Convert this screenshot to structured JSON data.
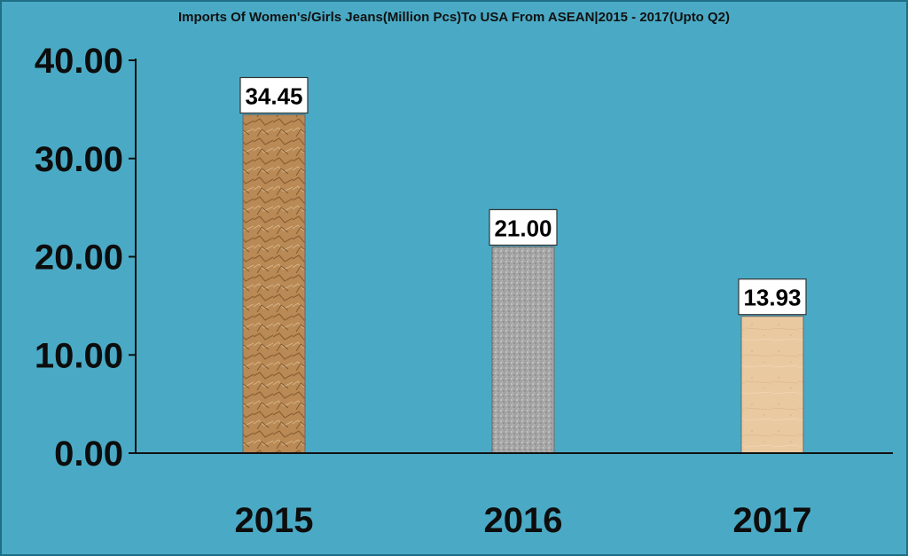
{
  "chart_data": {
    "type": "bar",
    "title": "Imports Of Women's/Girls Jeans(Million Pcs)To USA From ASEAN|2015 - 2017(Upto Q2)",
    "categories": [
      "2015",
      "2016",
      "2017"
    ],
    "values": [
      34.45,
      21.0,
      13.93
    ],
    "data_labels": [
      "34.45",
      "21.00",
      "13.93"
    ],
    "y_ticks": [
      "0.00",
      "10.00",
      "20.00",
      "30.00",
      "40.00"
    ],
    "y_tick_values": [
      0,
      10,
      20,
      30,
      40
    ],
    "ylim": [
      0,
      40
    ],
    "xlabel": "",
    "ylabel": "",
    "grid": false,
    "legend": "none",
    "colors": {
      "frame_background": "#4aaac5",
      "outer_border": "#1f6f86",
      "bar_2015": "#b98a55",
      "bar_2016": "#a3a3a3",
      "bar_2017": "#e9c9a0",
      "axis": "#111111",
      "label_box": "#ffffff"
    }
  }
}
